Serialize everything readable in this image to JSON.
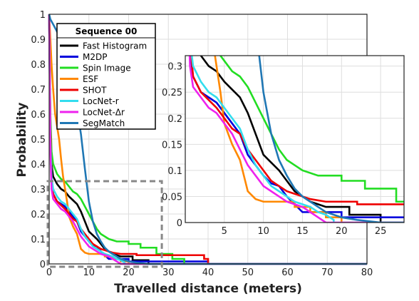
{
  "chart_data": {
    "type": "line",
    "xlabel": "Travelled distance (meters)",
    "ylabel": "Probability",
    "xlim": [
      0,
      80
    ],
    "ylim": [
      0,
      1
    ],
    "x_ticks": [
      "0",
      "10",
      "20",
      "30",
      "40",
      "50",
      "60",
      "70",
      "80"
    ],
    "y_ticks": [
      "0",
      "0.1",
      "0.2",
      "0.3",
      "0.4",
      "0.5",
      "0.6",
      "0.7",
      "0.8",
      "0.9",
      "1"
    ],
    "grid": true,
    "legend": {
      "title": "Sequence 00",
      "placement": "top-left"
    },
    "series": [
      {
        "name": "Fast Histogram",
        "color": "#000000",
        "points": [
          [
            0,
            1
          ],
          [
            0.3,
            0.55
          ],
          [
            0.6,
            0.4
          ],
          [
            1,
            0.35
          ],
          [
            2,
            0.32
          ],
          [
            3,
            0.3
          ],
          [
            4,
            0.29
          ],
          [
            5,
            0.27
          ],
          [
            6,
            0.255
          ],
          [
            7,
            0.24
          ],
          [
            8,
            0.21
          ],
          [
            9,
            0.17
          ],
          [
            10,
            0.13
          ],
          [
            11,
            0.115
          ],
          [
            12,
            0.1
          ],
          [
            13,
            0.08
          ],
          [
            14,
            0.06
          ],
          [
            15,
            0.05
          ],
          [
            16,
            0.04
          ],
          [
            17,
            0.035
          ],
          [
            18,
            0.03
          ],
          [
            21,
            0.03
          ],
          [
            21,
            0.015
          ],
          [
            25,
            0.015
          ],
          [
            25,
            0
          ],
          [
            80,
            0
          ]
        ]
      },
      {
        "name": "M2DP",
        "color": "#0000dd",
        "points": [
          [
            0,
            1
          ],
          [
            0.3,
            0.5
          ],
          [
            0.6,
            0.33
          ],
          [
            1,
            0.28
          ],
          [
            2,
            0.25
          ],
          [
            3,
            0.24
          ],
          [
            4,
            0.23
          ],
          [
            5,
            0.21
          ],
          [
            6,
            0.19
          ],
          [
            7,
            0.17
          ],
          [
            8,
            0.13
          ],
          [
            9,
            0.11
          ],
          [
            10,
            0.09
          ],
          [
            11,
            0.075
          ],
          [
            12,
            0.07
          ],
          [
            13,
            0.05
          ],
          [
            14,
            0.035
          ],
          [
            15,
            0.02
          ],
          [
            16,
            0.02
          ],
          [
            20,
            0.02
          ],
          [
            20,
            0.01
          ],
          [
            40,
            0.01
          ],
          [
            40,
            0
          ],
          [
            80,
            0
          ]
        ]
      },
      {
        "name": "Spin Image",
        "color": "#22dd22",
        "points": [
          [
            0,
            1
          ],
          [
            0.3,
            0.6
          ],
          [
            0.6,
            0.45
          ],
          [
            1,
            0.4
          ],
          [
            2,
            0.36
          ],
          [
            3,
            0.34
          ],
          [
            4,
            0.33
          ],
          [
            5,
            0.31
          ],
          [
            6,
            0.29
          ],
          [
            7,
            0.28
          ],
          [
            8,
            0.26
          ],
          [
            9,
            0.23
          ],
          [
            10,
            0.2
          ],
          [
            11,
            0.17
          ],
          [
            12,
            0.14
          ],
          [
            13,
            0.12
          ],
          [
            14,
            0.11
          ],
          [
            15,
            0.1
          ],
          [
            17,
            0.09
          ],
          [
            20,
            0.09
          ],
          [
            20,
            0.08
          ],
          [
            23,
            0.08
          ],
          [
            23,
            0.065
          ],
          [
            27,
            0.065
          ],
          [
            27,
            0.04
          ],
          [
            31,
            0.04
          ],
          [
            31,
            0.02
          ],
          [
            34,
            0.02
          ],
          [
            34,
            0
          ],
          [
            80,
            0
          ]
        ]
      },
      {
        "name": "ESF",
        "color": "#ff8800",
        "points": [
          [
            0,
            1
          ],
          [
            0.3,
            0.9
          ],
          [
            0.6,
            0.8
          ],
          [
            1,
            0.7
          ],
          [
            1.5,
            0.6
          ],
          [
            2,
            0.55
          ],
          [
            2.5,
            0.5
          ],
          [
            3,
            0.42
          ],
          [
            3.5,
            0.35
          ],
          [
            4,
            0.3
          ],
          [
            4.5,
            0.25
          ],
          [
            5,
            0.19
          ],
          [
            6,
            0.15
          ],
          [
            7,
            0.12
          ],
          [
            8,
            0.06
          ],
          [
            9,
            0.045
          ],
          [
            10,
            0.04
          ],
          [
            14,
            0.04
          ],
          [
            14,
            0.03
          ],
          [
            16,
            0.03
          ],
          [
            16,
            0.02
          ],
          [
            18,
            0.02
          ],
          [
            18,
            0.01
          ],
          [
            20,
            0.01
          ],
          [
            20,
            0
          ],
          [
            80,
            0
          ]
        ]
      },
      {
        "name": "SHOT",
        "color": "#ee0000",
        "points": [
          [
            0,
            1
          ],
          [
            0.3,
            0.55
          ],
          [
            0.6,
            0.35
          ],
          [
            1,
            0.28
          ],
          [
            2,
            0.25
          ],
          [
            3,
            0.235
          ],
          [
            4,
            0.22
          ],
          [
            5,
            0.2
          ],
          [
            6,
            0.18
          ],
          [
            7,
            0.17
          ],
          [
            8,
            0.14
          ],
          [
            9,
            0.12
          ],
          [
            10,
            0.1
          ],
          [
            11,
            0.08
          ],
          [
            12,
            0.07
          ],
          [
            13,
            0.06
          ],
          [
            14,
            0.055
          ],
          [
            15,
            0.05
          ],
          [
            16,
            0.045
          ],
          [
            18,
            0.04
          ],
          [
            22,
            0.04
          ],
          [
            22,
            0.035
          ],
          [
            39,
            0.035
          ],
          [
            39,
            0.02
          ],
          [
            40,
            0.02
          ],
          [
            40,
            0
          ],
          [
            80,
            0
          ]
        ]
      },
      {
        "name": "LocNet-r",
        "color": "#33ddee",
        "points": [
          [
            0,
            1
          ],
          [
            0.3,
            0.5
          ],
          [
            0.6,
            0.35
          ],
          [
            1,
            0.3
          ],
          [
            2,
            0.27
          ],
          [
            3,
            0.25
          ],
          [
            4,
            0.24
          ],
          [
            5,
            0.22
          ],
          [
            6,
            0.2
          ],
          [
            7,
            0.18
          ],
          [
            8,
            0.14
          ],
          [
            9,
            0.11
          ],
          [
            10,
            0.09
          ],
          [
            11,
            0.07
          ],
          [
            12,
            0.06
          ],
          [
            13,
            0.05
          ],
          [
            14,
            0.04
          ],
          [
            15,
            0.035
          ],
          [
            16,
            0.03
          ],
          [
            17,
            0.02
          ],
          [
            18,
            0.015
          ],
          [
            19,
            0.005
          ],
          [
            19,
            0
          ],
          [
            80,
            0
          ]
        ]
      },
      {
        "name": "LocNet-Δr",
        "color": "#ee22ee",
        "points": [
          [
            0,
            1
          ],
          [
            0.3,
            0.45
          ],
          [
            0.6,
            0.3
          ],
          [
            1,
            0.26
          ],
          [
            2,
            0.24
          ],
          [
            3,
            0.22
          ],
          [
            4,
            0.21
          ],
          [
            5,
            0.19
          ],
          [
            6,
            0.17
          ],
          [
            7,
            0.14
          ],
          [
            8,
            0.11
          ],
          [
            9,
            0.09
          ],
          [
            10,
            0.07
          ],
          [
            11,
            0.06
          ],
          [
            12,
            0.05
          ],
          [
            13,
            0.04
          ],
          [
            14,
            0.035
          ],
          [
            15,
            0.03
          ],
          [
            16,
            0.02
          ],
          [
            17,
            0.01
          ],
          [
            18,
            0
          ],
          [
            80,
            0
          ]
        ]
      },
      {
        "name": "SegMatch",
        "color": "#1f77b4",
        "points": [
          [
            0,
            1
          ],
          [
            0.3,
            0.98
          ],
          [
            1,
            0.96
          ],
          [
            2,
            0.93
          ],
          [
            3,
            0.89
          ],
          [
            4,
            0.85
          ],
          [
            5,
            0.8
          ],
          [
            6,
            0.72
          ],
          [
            7,
            0.62
          ],
          [
            8,
            0.52
          ],
          [
            9,
            0.38
          ],
          [
            10,
            0.25
          ],
          [
            11,
            0.17
          ],
          [
            12,
            0.12
          ],
          [
            13,
            0.09
          ],
          [
            14,
            0.065
          ],
          [
            15,
            0.05
          ],
          [
            16,
            0.04
          ],
          [
            17,
            0.03
          ],
          [
            18,
            0.02
          ],
          [
            20,
            0.01
          ],
          [
            22,
            0.005
          ],
          [
            25,
            0
          ],
          [
            80,
            0
          ]
        ]
      }
    ],
    "inset": {
      "xlim": [
        0,
        28
      ],
      "ylim": [
        0,
        0.32
      ],
      "x_ticks": [
        "5",
        "10",
        "15",
        "20",
        "25"
      ],
      "y_ticks": [
        "0",
        "0.05",
        "0.1",
        "0.15",
        "0.2",
        "0.25",
        "0.3"
      ]
    }
  }
}
